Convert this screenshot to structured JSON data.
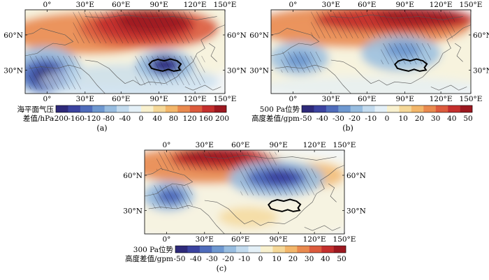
{
  "colors": {
    "low": [
      "#2e2a7a",
      "#3b43a0",
      "#4f6cbb",
      "#6e98d0",
      "#98bde0",
      "#c3dbee",
      "#e4f0f7"
    ],
    "high": [
      "#f8f1cf",
      "#f5d898",
      "#f2b66a",
      "#e98a4f",
      "#dc5b3d",
      "#c42f2d",
      "#9c1820"
    ],
    "land": "#555555",
    "plateau": "#000000"
  },
  "panels": [
    {
      "id": "a",
      "caption": "(a)",
      "lon_ticks": [
        "0°",
        "30°E",
        "60°E",
        "90°E",
        "120°E",
        "150°E"
      ],
      "lat_ticks": [
        "60°N",
        "30°N"
      ],
      "colorbar": {
        "title": [
          "海平面气压",
          "差值/hPa"
        ],
        "ticks": [
          "-200",
          "-160",
          "-120",
          "-80",
          "-40",
          "0",
          "40",
          "80",
          "120",
          "160",
          "200"
        ]
      }
    },
    {
      "id": "b",
      "caption": "(b)",
      "lon_ticks": [
        "0°",
        "30°E",
        "60°E",
        "90°E",
        "120°E",
        "150°E"
      ],
      "lat_ticks": [
        "60°N",
        "30°N"
      ],
      "colorbar": {
        "title": [
          "500 Pa位势",
          "高度差值/gpm"
        ],
        "ticks": [
          "-50",
          "-40",
          "-30",
          "-20",
          "-10",
          "0",
          "10",
          "20",
          "30",
          "40",
          "50"
        ]
      }
    },
    {
      "id": "c",
      "caption": "(c)",
      "lon_ticks": [
        "0°",
        "30°E",
        "60°E",
        "90°E",
        "120°E",
        "150°E"
      ],
      "lat_ticks": [
        "60°N",
        "30°N"
      ],
      "colorbar": {
        "title": [
          "300 Pa位势",
          "高度差值/gpm"
        ],
        "ticks": [
          "-50",
          "-40",
          "-30",
          "-20",
          "-10",
          "0",
          "10",
          "20",
          "30",
          "40",
          "50"
        ]
      }
    }
  ]
}
